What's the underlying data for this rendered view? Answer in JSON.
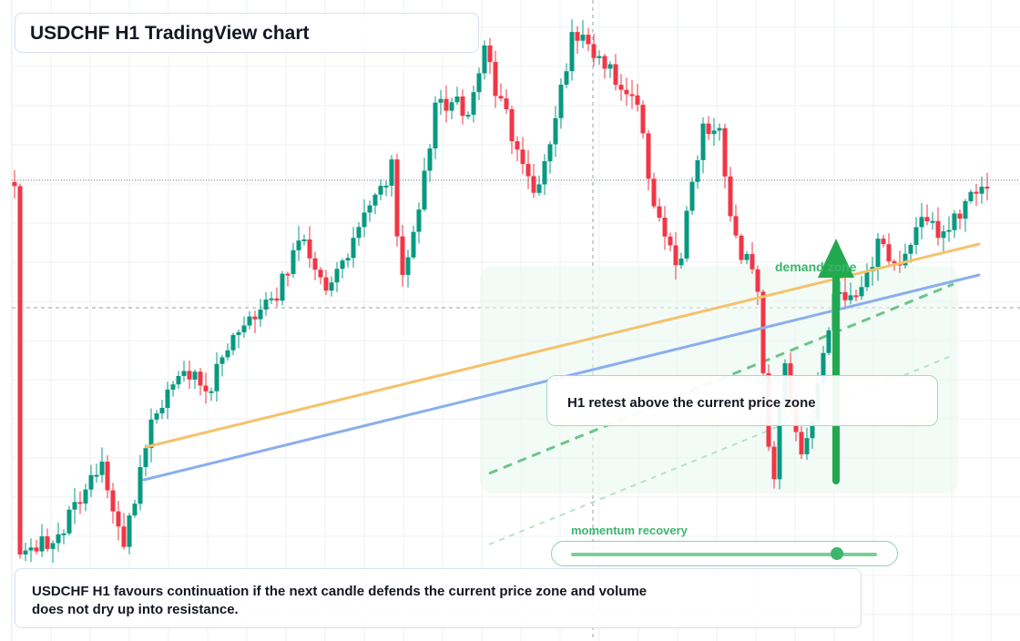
{
  "title": "USDCHF H1 TradingView chart",
  "annotations": {
    "retest": "H1 retest above the current price zone",
    "demand": "demand zone",
    "momentum": "momentum recovery",
    "note": "USDCHF H1 favours continuation if the next candle defends the current price zone and volume does not dry up into resistance."
  },
  "momentum_level": 0.87,
  "colors": {
    "up": "#089981",
    "down": "#f23645",
    "grid": "#eef0f3",
    "trend_orange": "#f5c26b",
    "trend_blue": "#8aaeee",
    "accent_green": "#22a94e"
  },
  "chart_data": {
    "type": "candlestick",
    "title": "USDCHF H1 TradingView chart",
    "xlabel": "",
    "ylabel": "",
    "y_axis_labels": false,
    "grid": true,
    "candles_visible": 178
  }
}
